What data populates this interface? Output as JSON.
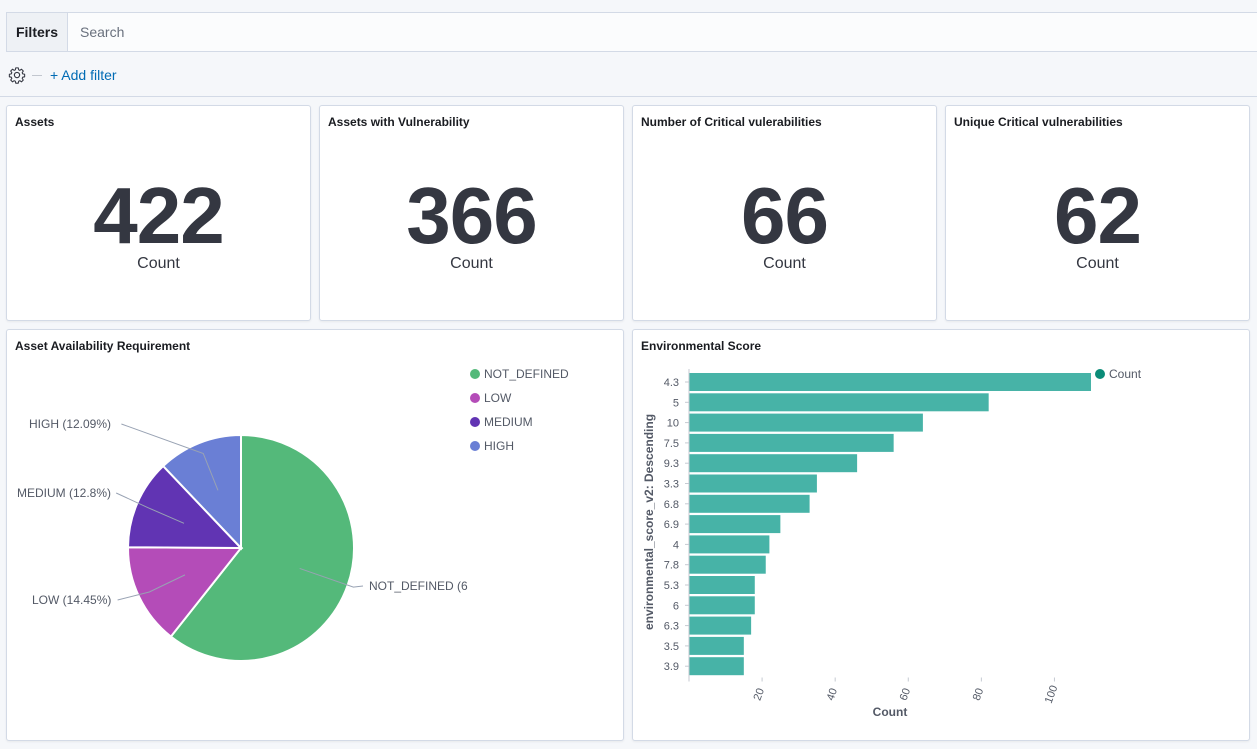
{
  "querybar": {
    "filters_label": "Filters",
    "search_placeholder": "Search",
    "add_filter_label": "+ Add filter"
  },
  "metrics": [
    {
      "title": "Assets",
      "value": "422",
      "label": "Count"
    },
    {
      "title": "Assets with Vulnerability",
      "value": "366",
      "label": "Count"
    },
    {
      "title": "Number of Critical vulerabilities",
      "value": "66",
      "label": "Count"
    },
    {
      "title": "Unique Critical vulnerabilities",
      "value": "62",
      "label": "Count"
    }
  ],
  "pie_panel": {
    "title": "Asset Availability Requirement"
  },
  "bar_panel": {
    "title": "Environmental Score"
  },
  "chart_data": [
    {
      "type": "pie",
      "title": "Asset Availability Requirement",
      "legend_position": "top-right",
      "slices": [
        {
          "name": "NOT_DEFINED",
          "percent": 60.66,
          "label": "NOT_DEFINED (6",
          "color": "#54b97a"
        },
        {
          "name": "LOW",
          "percent": 14.45,
          "label": "LOW (14.45%)",
          "color": "#b44cb8"
        },
        {
          "name": "MEDIUM",
          "percent": 12.8,
          "label": "MEDIUM (12.8%)",
          "color": "#6134b3"
        },
        {
          "name": "HIGH",
          "percent": 12.09,
          "label": "HIGH (12.09%)",
          "color": "#6a7fd5"
        }
      ]
    },
    {
      "type": "bar",
      "orientation": "horizontal",
      "title": "Environmental Score",
      "xlabel": "Count",
      "ylabel": "environmental_score_v2: Descending",
      "legend": "Count",
      "color": "#47b3a7",
      "xlim": [
        0,
        110
      ],
      "xticks": [
        20,
        40,
        60,
        80,
        100
      ],
      "categories": [
        "4.3",
        "5",
        "10",
        "7.5",
        "9.3",
        "3.3",
        "6.8",
        "6.9",
        "4",
        "7.8",
        "5.3",
        "6",
        "6.3",
        "3.5",
        "3.9"
      ],
      "values": [
        110,
        82,
        64,
        56,
        46,
        35,
        33,
        25,
        22,
        21,
        18,
        18,
        17,
        15,
        15
      ]
    }
  ]
}
